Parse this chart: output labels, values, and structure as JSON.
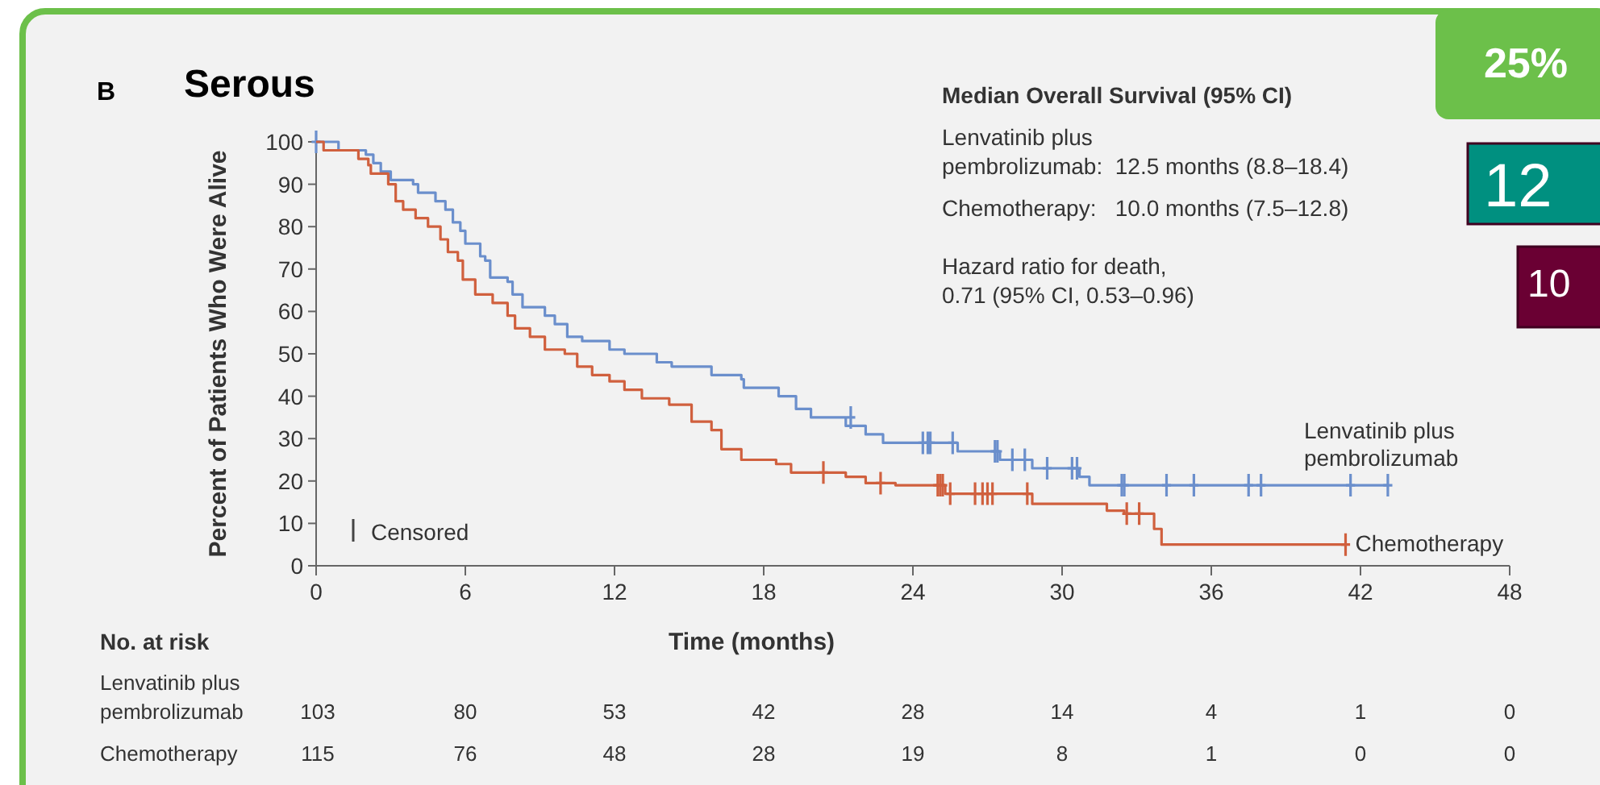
{
  "chart_data": {
    "type": "step",
    "title": "Serous",
    "xlabel": "Time (months)",
    "ylabel": "Percent of Patients Who Were Alive",
    "xlim": [
      0,
      48
    ],
    "xticks": [
      0,
      6,
      12,
      18,
      24,
      30,
      36,
      42,
      48
    ],
    "ylim": [
      0,
      100
    ],
    "yticks": [
      0,
      10,
      20,
      30,
      40,
      50,
      60,
      70,
      80,
      90,
      100
    ],
    "series": [
      {
        "name": "Lenvatinib plus pembrolizumab",
        "color": "#6b8fcc",
        "x": [
          0,
          0.9,
          2.0,
          2.3,
          2.6,
          3.0,
          3.9,
          4.1,
          4.8,
          5.2,
          5.5,
          5.8,
          6.0,
          6.6,
          6.8,
          7.0,
          7.7,
          7.9,
          8.3,
          9.2,
          9.6,
          10.1,
          10.7,
          11.8,
          12.4,
          13.7,
          14.3,
          15.9,
          17.1,
          17.2,
          18.6,
          19.3,
          19.9,
          21.3,
          22.1,
          22.8,
          25.8,
          27.5,
          28.8,
          30.7,
          31.1,
          43.1
        ],
        "values": [
          100,
          98,
          97,
          95,
          93,
          91,
          90,
          88,
          86,
          84,
          81,
          79,
          76,
          73,
          72,
          68,
          67,
          64,
          61,
          59,
          57,
          54,
          53,
          51,
          50,
          48,
          47,
          45,
          44,
          42,
          40,
          37,
          35,
          33,
          31,
          29,
          27,
          25,
          23,
          21,
          19,
          19
        ]
      },
      {
        "color": "#6b8fcc",
        "type": "scatter",
        "marker": "cross",
        "x": [
          0,
          21.5,
          24.4,
          24.6,
          24.7,
          25.6,
          27.3,
          27.4,
          28.0,
          28.5,
          29.4,
          30.4,
          30.6,
          32.4,
          32.5,
          34.2,
          35.3,
          37.5,
          38.0,
          41.6,
          43.1
        ],
        "values": [
          100,
          35,
          29,
          29,
          29,
          29,
          27,
          27,
          25,
          25,
          23,
          23,
          23,
          19,
          19,
          19,
          19,
          19,
          19,
          19,
          19
        ]
      },
      {
        "name": "Chemotherapy",
        "color": "#d0603e",
        "x": [
          0,
          0.3,
          1.7,
          2.1,
          2.2,
          2.9,
          3.2,
          3.5,
          4.0,
          4.5,
          5.0,
          5.3,
          5.7,
          5.9,
          6.4,
          7.1,
          7.7,
          8.0,
          8.6,
          9.2,
          10.0,
          10.5,
          11.1,
          11.8,
          12.4,
          13.1,
          14.2,
          15.1,
          15.9,
          16.3,
          17.1,
          18.5,
          19.1,
          21.3,
          22.1,
          23.3,
          25.3,
          28.8,
          31.8,
          32.5,
          33.7,
          34.0,
          41.4
        ],
        "values": [
          100,
          98,
          96,
          94.5,
          92.5,
          90,
          86,
          84,
          82,
          80,
          77,
          74,
          72,
          67.5,
          64,
          62,
          59,
          56,
          54,
          51,
          50,
          47,
          45,
          43.5,
          41.5,
          39.5,
          38,
          34,
          32,
          27.5,
          25,
          24,
          22,
          21,
          19.5,
          19,
          17,
          14.6,
          13,
          12.3,
          8.7,
          5,
          5
        ]
      },
      {
        "color": "#d0603e",
        "type": "scatter",
        "marker": "cross",
        "x": [
          20.4,
          22.7,
          25.0,
          25.1,
          25.2,
          25.5,
          26.5,
          26.8,
          27.0,
          27.2,
          28.6,
          32.6,
          33.1,
          41.4
        ],
        "values": [
          22,
          19.5,
          19,
          19,
          19,
          17,
          17,
          17,
          17,
          17,
          17,
          12.3,
          12.3,
          5
        ]
      }
    ],
    "annotations": [
      "B",
      "Median Overall Survival (95% CI)",
      "Lenvatinib plus",
      "pembrolizumab:  12.5 months (8.8–18.4)",
      "Chemotherapy:   10.0 months (7.5–12.8)",
      "Hazard ratio for death,",
      "0.71 (95% CI, 0.53–0.96)",
      "Censored",
      "No. at risk",
      "Lenvatinib plus",
      "pembrolizumab",
      "103",
      "80",
      "53",
      "42",
      "28",
      "14",
      "4",
      "1",
      "0",
      "Chemotherapy",
      "115",
      "76",
      "48",
      "28",
      "19",
      "8",
      "1",
      "0",
      "0",
      "25%",
      "12",
      "10"
    ]
  }
}
